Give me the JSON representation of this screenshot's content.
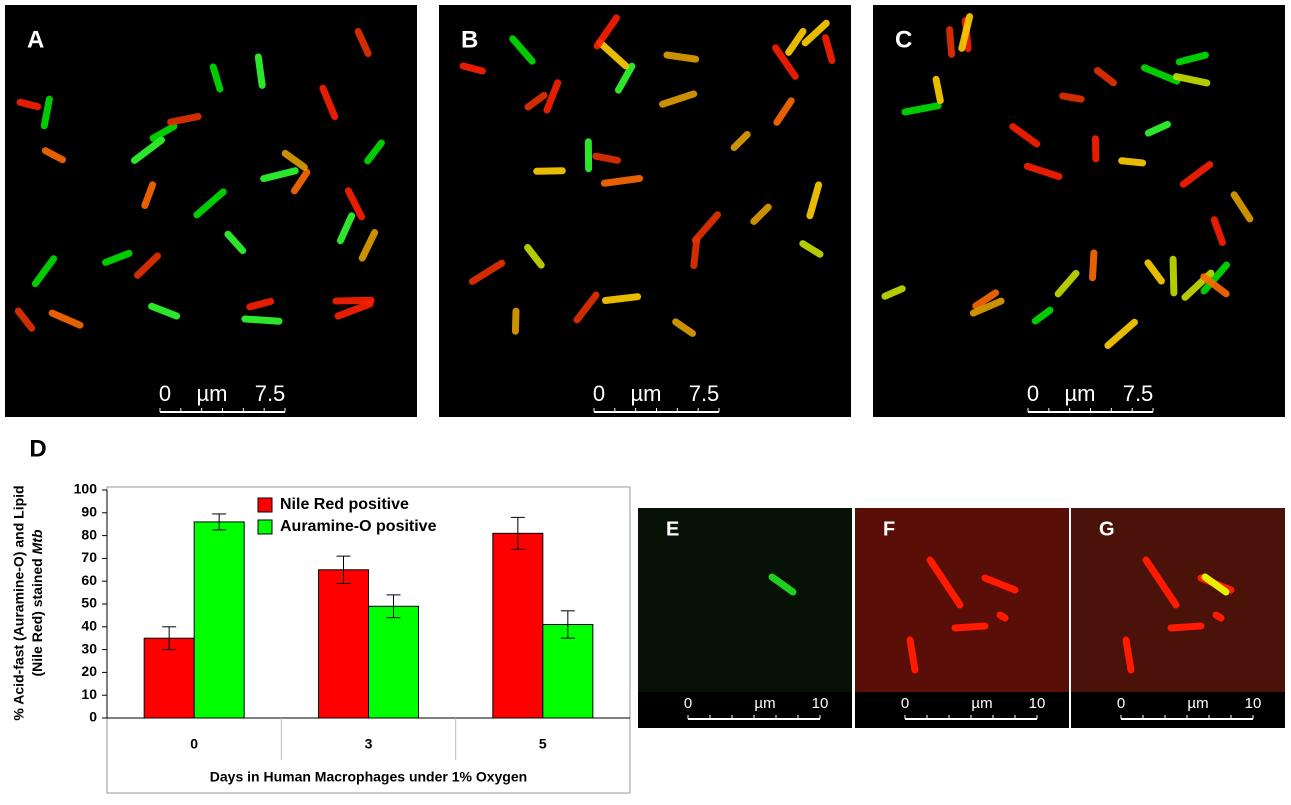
{
  "panels": [
    {
      "label": "A",
      "scale": [
        "0",
        "µm",
        "7.5"
      ]
    },
    {
      "label": "B",
      "scale": [
        "0",
        "µm",
        "7.5"
      ]
    },
    {
      "label": "C",
      "scale": [
        "0",
        "µm",
        "7.5"
      ]
    },
    {
      "label": "E",
      "scale": [
        "0",
        "µm",
        "10"
      ]
    },
    {
      "label": "F",
      "scale": [
        "0",
        "µm",
        "10"
      ]
    },
    {
      "label": "G",
      "scale": [
        "0",
        "µm",
        "10"
      ]
    }
  ],
  "chart_data": {
    "type": "bar",
    "panel_label": "D",
    "y_label": [
      "% Acid-fast (Auramine-O) and Lipid",
      "(Nile Red) stained ",
      "Mtb"
    ],
    "x_label": "Days in Human Macrophages under 1% Oxygen",
    "categories": [
      "0",
      "3",
      "5"
    ],
    "series": [
      {
        "name": "Nile Red positive",
        "color": "#ff0000",
        "values": [
          35,
          65,
          81
        ],
        "errors": [
          5,
          6,
          7
        ]
      },
      {
        "name": "Auramine-O positive",
        "color": "#00ff00",
        "values": [
          86,
          49,
          41
        ],
        "errors": [
          3.5,
          5,
          6
        ]
      }
    ],
    "ylim": [
      0,
      100
    ],
    "yticks": [
      0,
      10,
      20,
      30,
      40,
      50,
      60,
      70,
      80,
      90,
      100
    ],
    "legend": "upper-left"
  }
}
